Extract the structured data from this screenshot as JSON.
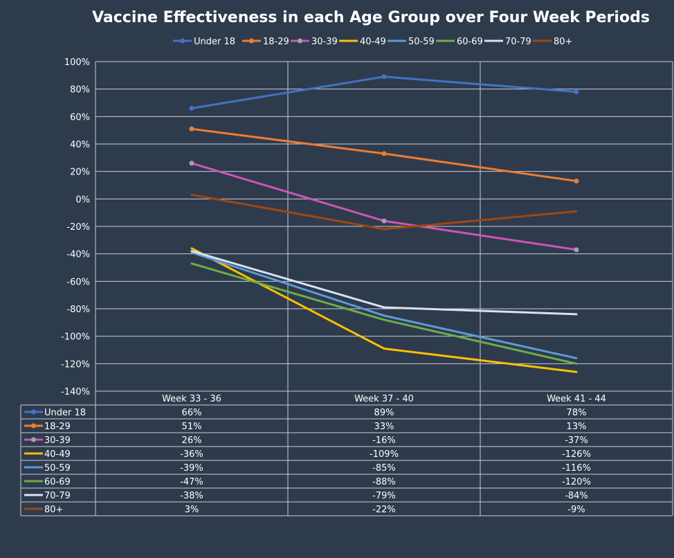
{
  "chart_data": {
    "type": "line",
    "title": "Vaccine Effectiveness in each Age Group over Four Week Periods",
    "categories": [
      "Week 33 - 36",
      "Week 37 - 40",
      "Week 41 - 44"
    ],
    "ylim": [
      -140,
      100
    ],
    "ytick_step": 20,
    "ytick_suffix": "%",
    "grid": true,
    "legend_position": "top",
    "data_table": true,
    "series": [
      {
        "name": "Under 18",
        "values": [
          66,
          89,
          78
        ],
        "labels": [
          "66%",
          "89%",
          "78%"
        ],
        "color": "#4472c4",
        "marker": true
      },
      {
        "name": "18-29",
        "values": [
          51,
          33,
          13
        ],
        "labels": [
          "51%",
          "33%",
          "13%"
        ],
        "color": "#ed7d31",
        "marker": true
      },
      {
        "name": "30-39",
        "values": [
          26,
          -16,
          -37
        ],
        "labels": [
          "26%",
          "-16%",
          "-37%"
        ],
        "color": "#d053b8",
        "marker": true,
        "marker_color": "#a5a5a5"
      },
      {
        "name": "40-49",
        "values": [
          -36,
          -109,
          -126
        ],
        "labels": [
          "-36%",
          "-109%",
          "-126%"
        ],
        "color": "#ffc000",
        "marker": false
      },
      {
        "name": "50-59",
        "values": [
          -39,
          -85,
          -116
        ],
        "labels": [
          "-39%",
          "-85%",
          "-116%"
        ],
        "color": "#5b9bd5",
        "marker": false
      },
      {
        "name": "60-69",
        "values": [
          -47,
          -88,
          -120
        ],
        "labels": [
          "-47%",
          "-88%",
          "-120%"
        ],
        "color": "#70ad47",
        "marker": false
      },
      {
        "name": "70-79",
        "values": [
          -38,
          -79,
          -84
        ],
        "labels": [
          "-38%",
          "-79%",
          "-84%"
        ],
        "color": "#d9e1f2",
        "marker": false
      },
      {
        "name": "80+",
        "values": [
          3,
          -22,
          -9
        ],
        "labels": [
          "3%",
          "-22%",
          "-9%"
        ],
        "color": "#9e480e",
        "marker": false
      }
    ]
  }
}
